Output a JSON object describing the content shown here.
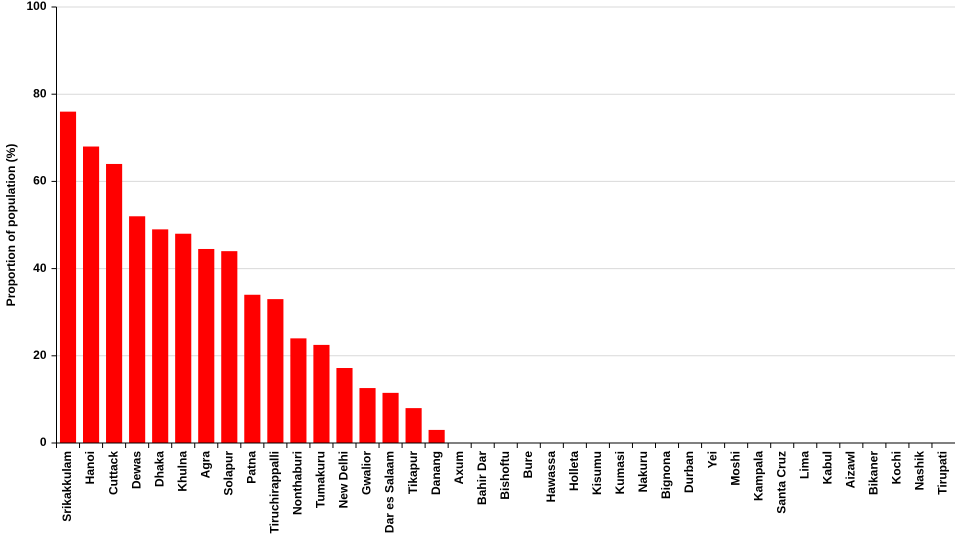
{
  "chart_data": {
    "type": "bar",
    "y_label": "Proportion of population (%)",
    "categories": [
      "Srikakkulam",
      "Hanoi",
      "Cuttack",
      "Dewas",
      "Dhaka",
      "Khulna",
      "Agra",
      "Solapur",
      "Patna",
      "Tiruchirappalli",
      "Nonthaburi",
      "Tumakuru",
      "New Delhi",
      "Gwalior",
      "Dar es Salaam",
      "Tikapur",
      "Danang",
      "Axum",
      "Bahir Dar",
      "Bishoftu",
      "Bure",
      "Hawassa",
      "Holleta",
      "Kisumu",
      "Kumasi",
      "Nakuru",
      "Bignona",
      "Durban",
      "Yei",
      "Moshi",
      "Kampala",
      "Santa Cruz",
      "Lima",
      "Kabul",
      "Aizawl",
      "Bikaner",
      "Kochi",
      "Nashik",
      "Tirupati"
    ],
    "values": [
      76,
      68,
      64,
      52,
      49,
      48,
      44.5,
      44,
      34,
      33,
      24,
      22.5,
      17.2,
      12.6,
      11.5,
      8,
      3,
      0,
      0,
      0,
      0,
      0,
      0,
      0,
      0,
      0,
      0,
      0,
      0,
      0,
      0,
      0,
      0,
      0,
      0,
      0,
      0,
      0,
      0
    ],
    "color": "#ff0000",
    "ylim": [
      0,
      100
    ],
    "yticks": [
      0,
      20,
      40,
      60,
      80,
      100
    ],
    "grid": true
  }
}
